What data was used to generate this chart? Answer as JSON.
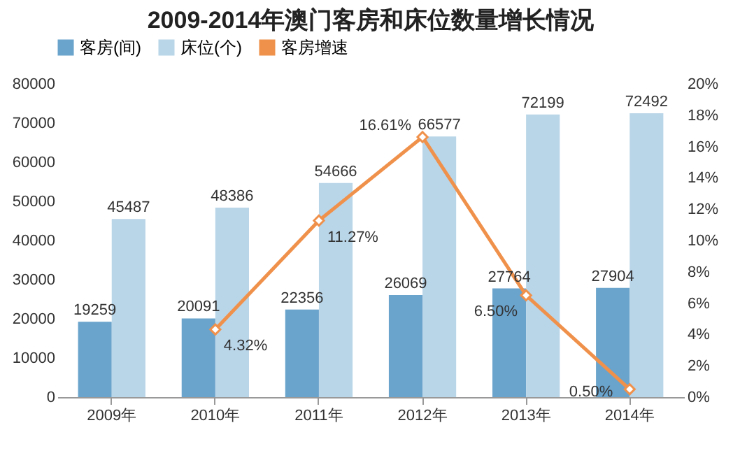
{
  "chart_data": {
    "type": "bar",
    "title": "2009-2014年澳门客房和床位数量增长情况",
    "categories": [
      "2009年",
      "2010年",
      "2011年",
      "2012年",
      "2013年",
      "2014年"
    ],
    "series": [
      {
        "name": "客房(间)",
        "color": "#6aa3cc",
        "values": [
          19259,
          20091,
          22356,
          26069,
          27764,
          27904
        ]
      },
      {
        "name": "床位(个)",
        "color": "#b9d5e8",
        "values": [
          45487,
          48386,
          54666,
          66577,
          72199,
          72492
        ]
      },
      {
        "name": "客房增速",
        "type": "line",
        "axis": "y2",
        "color": "#f0914b",
        "values": [
          null,
          4.32,
          11.27,
          16.61,
          6.5,
          0.5
        ],
        "value_labels": [
          null,
          "4.32%",
          "11.27%",
          "16.61%",
          "6.50%",
          "0.50%"
        ]
      }
    ],
    "ylim": [
      0,
      80000
    ],
    "yticks": [
      0,
      10000,
      20000,
      30000,
      40000,
      50000,
      60000,
      70000,
      80000
    ],
    "y2lim": [
      0,
      20
    ],
    "y2ticks": [
      {
        "value": 0,
        "label": "0%"
      },
      {
        "value": 2,
        "label": "2%"
      },
      {
        "value": 4,
        "label": "4%"
      },
      {
        "value": 6,
        "label": "6%"
      },
      {
        "value": 8,
        "label": "8%"
      },
      {
        "value": 10,
        "label": "10%"
      },
      {
        "value": 12,
        "label": "12%"
      },
      {
        "value": 14,
        "label": "14%"
      },
      {
        "value": 16,
        "label": "16%"
      },
      {
        "value": 18,
        "label": "18%"
      },
      {
        "value": 20,
        "label": "20%"
      }
    ],
    "data_labels": true,
    "legend": "top",
    "marker": "diamond",
    "grid": false
  }
}
